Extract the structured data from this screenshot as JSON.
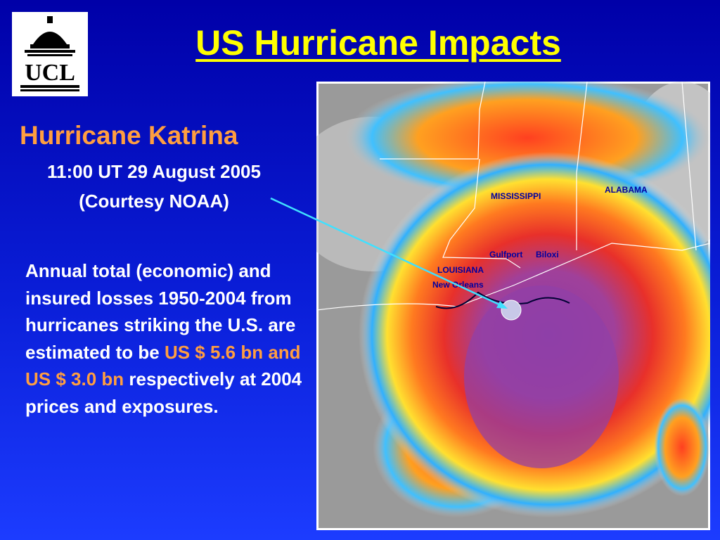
{
  "logo": {
    "text": "UCL"
  },
  "header": {
    "title": "US Hurricane Impacts"
  },
  "caption": {
    "heading": "Hurricane Katrina",
    "date": "11:00 UT 29 August 2005",
    "credit": "(Courtesy NOAA)"
  },
  "body": {
    "text_1": "Annual total (economic) and insured losses 1950-2004 from hurricanes striking the U.S. are estimated to be",
    "highlight": "US $ 5.6 bn and US $ 3.0 bn",
    "text_2": "respectively at 2004 prices and exposures."
  },
  "map": {
    "labels": [
      "MISSISSIPPI",
      "ALABAMA",
      "LOUISIANA",
      "Gulfport",
      "Biloxi",
      "New Orleans"
    ]
  }
}
